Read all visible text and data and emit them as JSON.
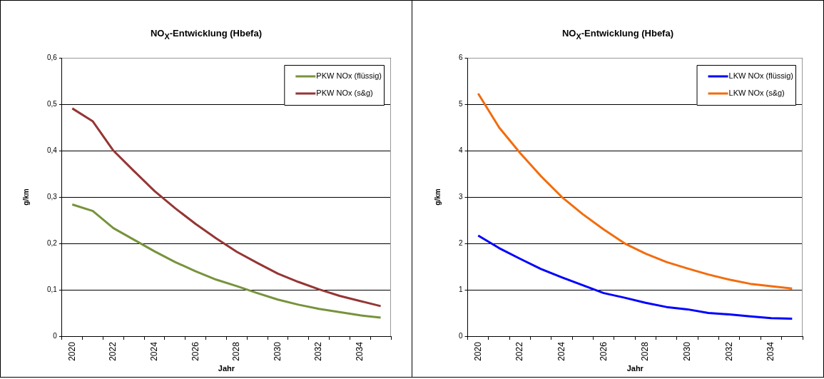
{
  "chart_data": [
    {
      "type": "line",
      "title": "NO$_{X}$-Entwicklung (Hbefa)",
      "xlabel": "Jahr",
      "ylabel": "g/km",
      "categories": [
        "2020",
        null,
        "2022",
        null,
        "2024",
        null,
        "2026",
        null,
        "2028",
        null,
        "2030",
        null,
        "2032",
        null,
        "2034",
        null
      ],
      "series": [
        {
          "name": "PKW NOx (flüssig)",
          "color": "#77933c",
          "values": [
            0.284,
            0.27,
            0.233,
            0.208,
            0.183,
            0.16,
            0.14,
            0.122,
            0.108,
            0.093,
            0.079,
            0.068,
            0.059,
            0.052,
            0.045,
            0.04
          ]
        },
        {
          "name": "PKW NOx (s&g)",
          "color": "#943634",
          "values": [
            0.491,
            0.463,
            0.4,
            0.356,
            0.313,
            0.276,
            0.242,
            0.211,
            0.182,
            0.158,
            0.135,
            0.117,
            0.101,
            0.087,
            0.076,
            0.065
          ]
        }
      ],
      "ylim": [
        0,
        0.6
      ],
      "yticks": [
        0,
        {
          "value": 0.1,
          "label": "0,1"
        },
        {
          "value": 0.2,
          "label": "0,2"
        },
        {
          "value": 0.3,
          "label": "0,3"
        },
        {
          "value": 0.4,
          "label": "0,4"
        },
        {
          "value": 0.5,
          "label": "0,5"
        },
        {
          "value": 0.6,
          "label": "0,6"
        }
      ],
      "grid": "y",
      "legend": "top right",
      "marker": "none",
      "line_style": "solid"
    },
    {
      "type": "line",
      "title": "NO$_{X}$-Entwicklung (Hbefa)",
      "xlabel": "Jahr",
      "ylabel": "g/km",
      "categories": [
        "2020",
        null,
        "2022",
        null,
        "2024",
        null,
        "2026",
        null,
        "2028",
        null,
        "2030",
        null,
        "2032",
        null,
        "2034",
        null
      ],
      "series": [
        {
          "name": "LKW NOx (flüssig)",
          "color": "#0000ff",
          "values": [
            2.17,
            1.9,
            1.67,
            1.45,
            1.27,
            1.1,
            0.93,
            0.83,
            0.72,
            0.63,
            0.58,
            0.5,
            0.47,
            0.43,
            0.39,
            0.38
          ]
        },
        {
          "name": "LKW NOx (s&g)",
          "color": "#f26c0d",
          "values": [
            5.23,
            4.5,
            3.95,
            3.45,
            3.0,
            2.63,
            2.3,
            2.0,
            1.78,
            1.6,
            1.46,
            1.33,
            1.22,
            1.13,
            1.08,
            1.03
          ]
        }
      ],
      "ylim": [
        0,
        6
      ],
      "yticks": [
        0,
        1,
        2,
        3,
        4,
        5,
        6
      ],
      "grid": "y",
      "legend": "top right",
      "marker": "none",
      "line_style": "solid"
    }
  ]
}
